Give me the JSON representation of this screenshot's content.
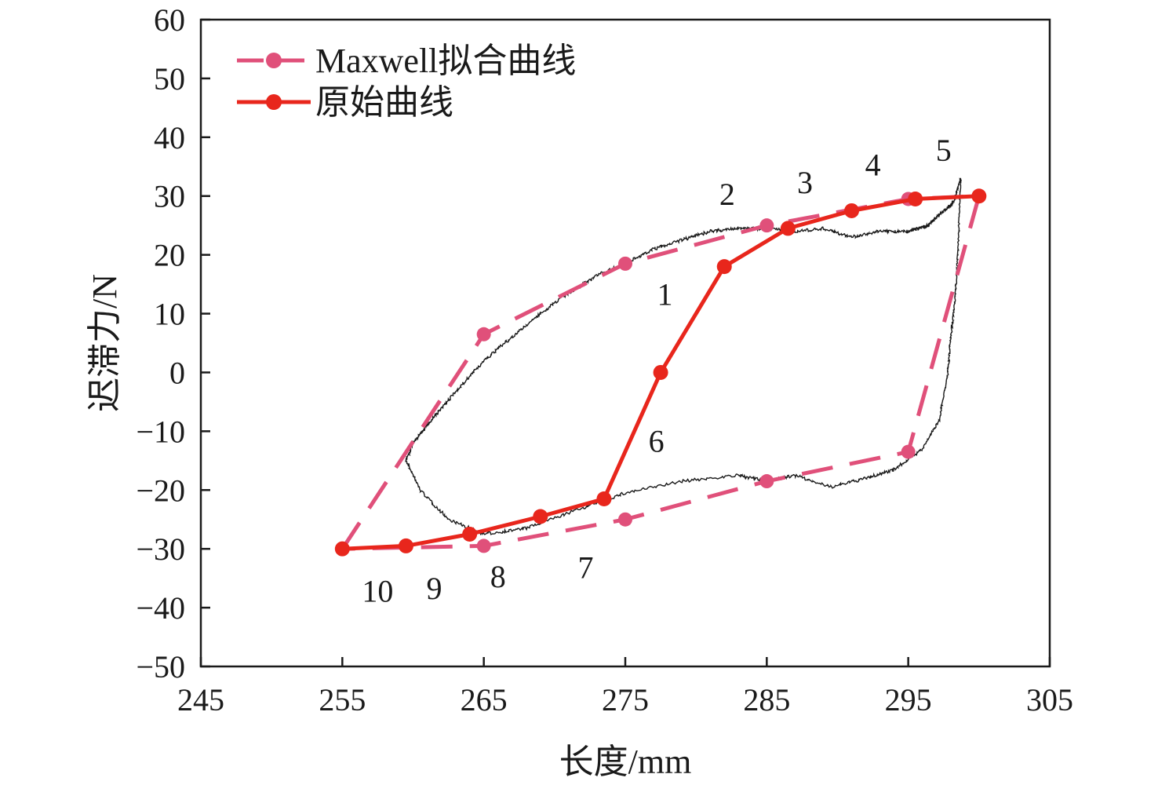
{
  "chart_data": {
    "type": "line",
    "title": "",
    "xlabel": "长度/mm",
    "ylabel": "迟滞力/N",
    "xlim": [
      245,
      305
    ],
    "ylim": [
      -50,
      60
    ],
    "xticks": [
      245,
      255,
      265,
      275,
      285,
      295,
      305
    ],
    "yticks": [
      -50,
      -40,
      -30,
      -20,
      -10,
      0,
      10,
      20,
      30,
      40,
      50,
      60
    ],
    "grid": false,
    "legend_position": "top-left",
    "colors": {
      "maxwell": "#e0507a",
      "original": "#e8261c",
      "measured": "#1a1a1a",
      "axis": "#1a1a1a"
    },
    "series": [
      {
        "name": "Maxwell拟合曲线",
        "style": "dashed",
        "marker": "circle",
        "x": [
          255,
          265,
          275,
          285,
          295,
          300,
          295,
          285,
          275,
          265,
          255
        ],
        "y": [
          -30,
          6.5,
          18.5,
          25,
          29.5,
          30,
          -13.5,
          -18.5,
          -25,
          -29.5,
          -30
        ],
        "marker_indices": [
          1,
          2,
          3,
          4,
          5,
          6,
          7,
          8,
          9
        ]
      },
      {
        "name": "原始曲线",
        "style": "solid",
        "marker": "circle",
        "x": [
          255,
          259.5,
          264,
          269,
          273.5,
          277.5,
          282,
          286.5,
          291,
          295.5,
          300
        ],
        "y": [
          -30,
          -29.5,
          -27.5,
          -24.5,
          -21.5,
          0,
          18,
          24.5,
          27.5,
          29.5,
          30
        ]
      },
      {
        "name": "",
        "style": "noisy",
        "marker": "none",
        "x": [
          259.5,
          260.5,
          262.5,
          265,
          268,
          272,
          275,
          279,
          283,
          285,
          287,
          289.5,
          292,
          294,
          296,
          297.2,
          297.8,
          298,
          298.3,
          298.5,
          298.7,
          298.2,
          297.8,
          297,
          296.4,
          295.8,
          295,
          293,
          291,
          289,
          287,
          285,
          283,
          281,
          279,
          277,
          275,
          273,
          271,
          269,
          267,
          265,
          263.5,
          262,
          261,
          260,
          259.5
        ],
        "y": [
          -15,
          -20,
          -25,
          -27.5,
          -26.5,
          -23,
          -20.5,
          -18.5,
          -17.5,
          -18.5,
          -17.5,
          -19.5,
          -18,
          -16.5,
          -13,
          -8,
          0,
          6,
          12,
          20,
          33,
          29,
          28,
          26.5,
          25,
          24.5,
          24,
          24,
          23,
          24.5,
          24,
          24.5,
          24.5,
          24,
          22.5,
          21,
          18.5,
          16.5,
          13.5,
          10,
          6,
          2,
          -2,
          -6,
          -9,
          -12,
          -15
        ]
      }
    ],
    "annotations": [
      {
        "text": "1",
        "x": 277.8,
        "y": 11.5
      },
      {
        "text": "2",
        "x": 282.2,
        "y": 28.5
      },
      {
        "text": "3",
        "x": 287.7,
        "y": 30.5
      },
      {
        "text": "4",
        "x": 292.5,
        "y": 33.5
      },
      {
        "text": "5",
        "x": 297.5,
        "y": 36.0
      },
      {
        "text": "6",
        "x": 277.2,
        "y": -13.5
      },
      {
        "text": "7",
        "x": 272.2,
        "y": -35.0
      },
      {
        "text": "8",
        "x": 266.0,
        "y": -36.5
      },
      {
        "text": "9",
        "x": 261.5,
        "y": -38.5
      },
      {
        "text": "10",
        "x": 257.5,
        "y": -39.0
      }
    ]
  }
}
